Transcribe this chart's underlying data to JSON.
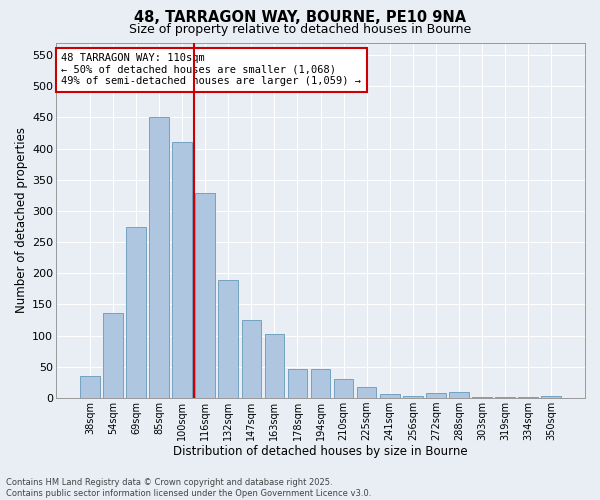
{
  "title_line1": "48, TARRAGON WAY, BOURNE, PE10 9NA",
  "title_line2": "Size of property relative to detached houses in Bourne",
  "xlabel": "Distribution of detached houses by size in Bourne",
  "ylabel": "Number of detached properties",
  "bar_color": "#aec6e0",
  "bar_edge_color": "#6699bb",
  "categories": [
    "38sqm",
    "54sqm",
    "69sqm",
    "85sqm",
    "100sqm",
    "116sqm",
    "132sqm",
    "147sqm",
    "163sqm",
    "178sqm",
    "194sqm",
    "210sqm",
    "225sqm",
    "241sqm",
    "256sqm",
    "272sqm",
    "288sqm",
    "303sqm",
    "319sqm",
    "334sqm",
    "350sqm"
  ],
  "values": [
    35,
    137,
    275,
    450,
    410,
    328,
    190,
    125,
    102,
    47,
    47,
    30,
    18,
    7,
    3,
    8,
    9,
    2,
    2,
    1,
    3
  ],
  "vline_x": 4.5,
  "vline_color": "#cc0000",
  "annotation_text": "48 TARRAGON WAY: 110sqm\n← 50% of detached houses are smaller (1,068)\n49% of semi-detached houses are larger (1,059) →",
  "annotation_box_color": "#ffffff",
  "annotation_box_edge": "#cc0000",
  "ylim": [
    0,
    570
  ],
  "yticks": [
    0,
    50,
    100,
    150,
    200,
    250,
    300,
    350,
    400,
    450,
    500,
    550
  ],
  "footer_line1": "Contains HM Land Registry data © Crown copyright and database right 2025.",
  "footer_line2": "Contains public sector information licensed under the Open Government Licence v3.0.",
  "background_color": "#e8eef4",
  "grid_color": "#ffffff"
}
